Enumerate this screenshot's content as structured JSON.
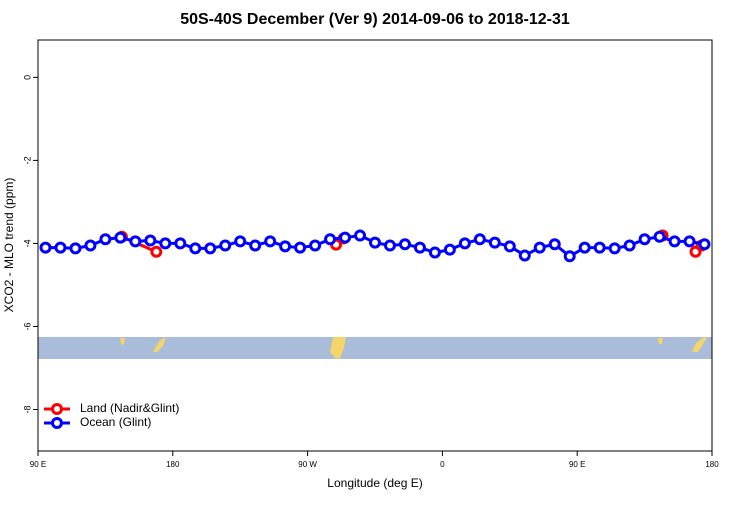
{
  "chart_data": {
    "type": "line",
    "title": "50S-40S December (Ver 9)   2014-09-06 to 2018-12-31",
    "x_label": "Longitude (deg E)",
    "y_label": "XCO2 - MLO trend (ppm)",
    "xlim": [
      90,
      540
    ],
    "xticks": [
      {
        "value": 90,
        "label": "90 E"
      },
      {
        "value": 180,
        "label": "180"
      },
      {
        "value": 270,
        "label": "90 W"
      },
      {
        "value": 360,
        "label": "0"
      },
      {
        "value": 450,
        "label": "90 E"
      },
      {
        "value": 540,
        "label": "180"
      }
    ],
    "ylim": [
      -9,
      0.9
    ],
    "yticks": [
      -8,
      -6,
      -4,
      -2,
      0
    ],
    "legend": "bottomleft",
    "series": [
      {
        "name": "Land (Nadir&Glint)",
        "color": "#ff0000",
        "x": [
          146,
          169,
          null,
          289,
          294,
          null,
          507,
          null,
          529,
          533
        ],
        "values": [
          -3.84,
          -4.2,
          null,
          -4.03,
          -3.88,
          null,
          -3.81,
          null,
          -4.2,
          -4.05
        ]
      },
      {
        "name": "Ocean (Glint)",
        "color": "#0000ff",
        "x": [
          95,
          105,
          115,
          125,
          135,
          145,
          155,
          165,
          175,
          185,
          195,
          205,
          215,
          225,
          235,
          245,
          255,
          265,
          275,
          285,
          295,
          305,
          315,
          325,
          335,
          345,
          355,
          365,
          375,
          385,
          395,
          405,
          415,
          425,
          435,
          445,
          455,
          465,
          475,
          485,
          495,
          505,
          515,
          525,
          535
        ],
        "values": [
          -4.1,
          -4.1,
          -4.12,
          -4.05,
          -3.9,
          -3.86,
          -3.95,
          -3.93,
          -4.0,
          -4.0,
          -4.12,
          -4.12,
          -4.05,
          -3.95,
          -4.05,
          -3.95,
          -4.07,
          -4.1,
          -4.05,
          -3.9,
          -3.86,
          -3.81,
          -3.98,
          -4.05,
          -4.02,
          -4.1,
          -4.22,
          -4.15,
          -4.0,
          -3.9,
          -3.98,
          -4.07,
          -4.29,
          -4.1,
          -4.02,
          -4.31,
          -4.1,
          -4.1,
          -4.12,
          -4.05,
          -3.9,
          -3.84,
          -3.95,
          -3.95,
          -4.02
        ]
      }
    ]
  }
}
